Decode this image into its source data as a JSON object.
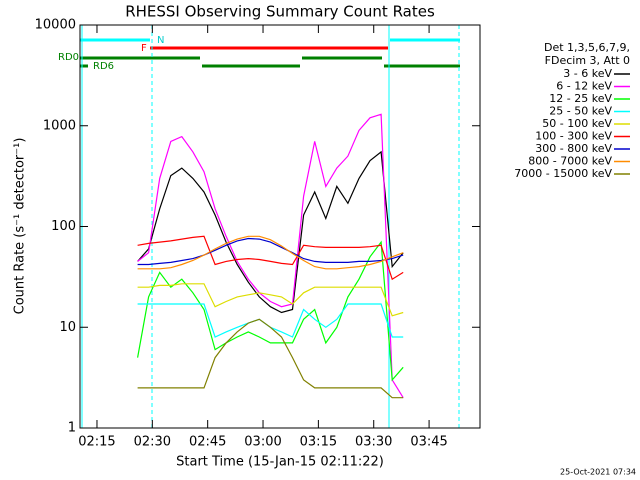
{
  "chart_data": {
    "type": "line",
    "title": "RHESSI Observing Summary Count Rates",
    "xlabel": "Start Time (15-Jan-15 02:11:22)",
    "ylabel": "Count Rate (s⁻¹ detector⁻¹)",
    "legend_header": [
      "Det 1,3,5,6,7,9,",
      "FDecim 3, Att 0"
    ],
    "timestamp": "25-Oct-2021 07:34",
    "annotations": [
      "N",
      "F",
      "RD0",
      "RD6"
    ],
    "log_y": true,
    "legend": "right",
    "xlim": [
      130.4,
      238.8
    ],
    "xticks": [
      {
        "value": 135,
        "label": "02:15"
      },
      {
        "value": 150,
        "label": "02:30"
      },
      {
        "value": 165,
        "label": "02:45"
      },
      {
        "value": 180,
        "label": "03:00"
      },
      {
        "value": 195,
        "label": "03:15"
      },
      {
        "value": 210,
        "label": "03:30"
      },
      {
        "value": 225,
        "label": "03:45"
      }
    ],
    "ylim": [
      1,
      10000
    ],
    "yticks": [
      1,
      10,
      100,
      1000,
      10000
    ],
    "x": [
      146,
      149,
      152,
      155,
      158,
      161,
      164,
      167,
      170,
      173,
      176,
      179,
      182,
      185,
      188,
      191,
      194,
      197,
      200,
      203,
      206,
      209,
      212,
      215,
      218
    ],
    "series": [
      {
        "name": "3 - 6 keV",
        "color": "#000000",
        "values": [
          45,
          60,
          150,
          320,
          380,
          300,
          220,
          130,
          70,
          42,
          28,
          20,
          16,
          14,
          15,
          130,
          220,
          120,
          250,
          170,
          300,
          450,
          550,
          40,
          55
        ]
      },
      {
        "name": "6 - 12 keV",
        "color": "#ff00ff",
        "values": [
          45,
          55,
          300,
          700,
          780,
          550,
          350,
          150,
          80,
          45,
          30,
          22,
          18,
          16,
          17,
          200,
          700,
          250,
          380,
          500,
          900,
          1200,
          1300,
          3,
          2
        ]
      },
      {
        "name": "12 - 25 keV",
        "color": "#00ff00",
        "values": [
          5,
          20,
          35,
          25,
          30,
          22,
          15,
          6,
          7,
          8,
          9,
          8,
          7,
          7,
          7,
          12,
          15,
          7,
          10,
          20,
          30,
          50,
          70,
          3,
          4
        ]
      },
      {
        "name": "25 - 50 keV",
        "color": "#00ffff",
        "values": [
          17,
          17,
          17,
          17,
          17,
          17,
          17,
          8,
          9,
          10,
          11,
          12,
          10,
          9,
          8,
          15,
          12,
          10,
          12,
          17,
          17,
          17,
          17,
          8,
          8
        ]
      },
      {
        "name": "50 - 100 keV",
        "color": "#dddd00",
        "values": [
          25,
          25,
          26,
          26,
          27,
          27,
          27,
          16,
          18,
          20,
          21,
          22,
          21,
          20,
          17,
          22,
          25,
          25,
          25,
          25,
          25,
          25,
          25,
          13,
          14
        ]
      },
      {
        "name": "100 - 300 keV",
        "color": "#ff0000",
        "values": [
          65,
          68,
          70,
          72,
          75,
          78,
          80,
          42,
          45,
          47,
          48,
          47,
          45,
          43,
          42,
          65,
          63,
          62,
          62,
          62,
          62,
          63,
          65,
          30,
          35
        ]
      },
      {
        "name": "300 - 800 keV",
        "color": "#0000cc",
        "values": [
          42,
          42,
          43,
          44,
          46,
          48,
          52,
          58,
          65,
          72,
          76,
          75,
          70,
          62,
          55,
          48,
          45,
          44,
          44,
          44,
          45,
          45,
          46,
          48,
          52
        ]
      },
      {
        "name": "800 - 7000 keV",
        "color": "#ff8c00",
        "values": [
          38,
          38,
          38,
          39,
          42,
          46,
          52,
          60,
          68,
          75,
          80,
          80,
          74,
          64,
          54,
          46,
          40,
          38,
          38,
          39,
          40,
          42,
          45,
          50,
          55
        ]
      },
      {
        "name": "7000 - 15000 keV",
        "color": "#808000",
        "values": [
          2.5,
          2.5,
          2.5,
          2.5,
          2.5,
          2.5,
          2.5,
          5,
          7,
          9,
          11,
          12,
          10,
          8,
          5,
          3,
          2.5,
          2.5,
          2.5,
          2.5,
          2.5,
          2.5,
          2.5,
          2,
          2
        ]
      }
    ]
  }
}
